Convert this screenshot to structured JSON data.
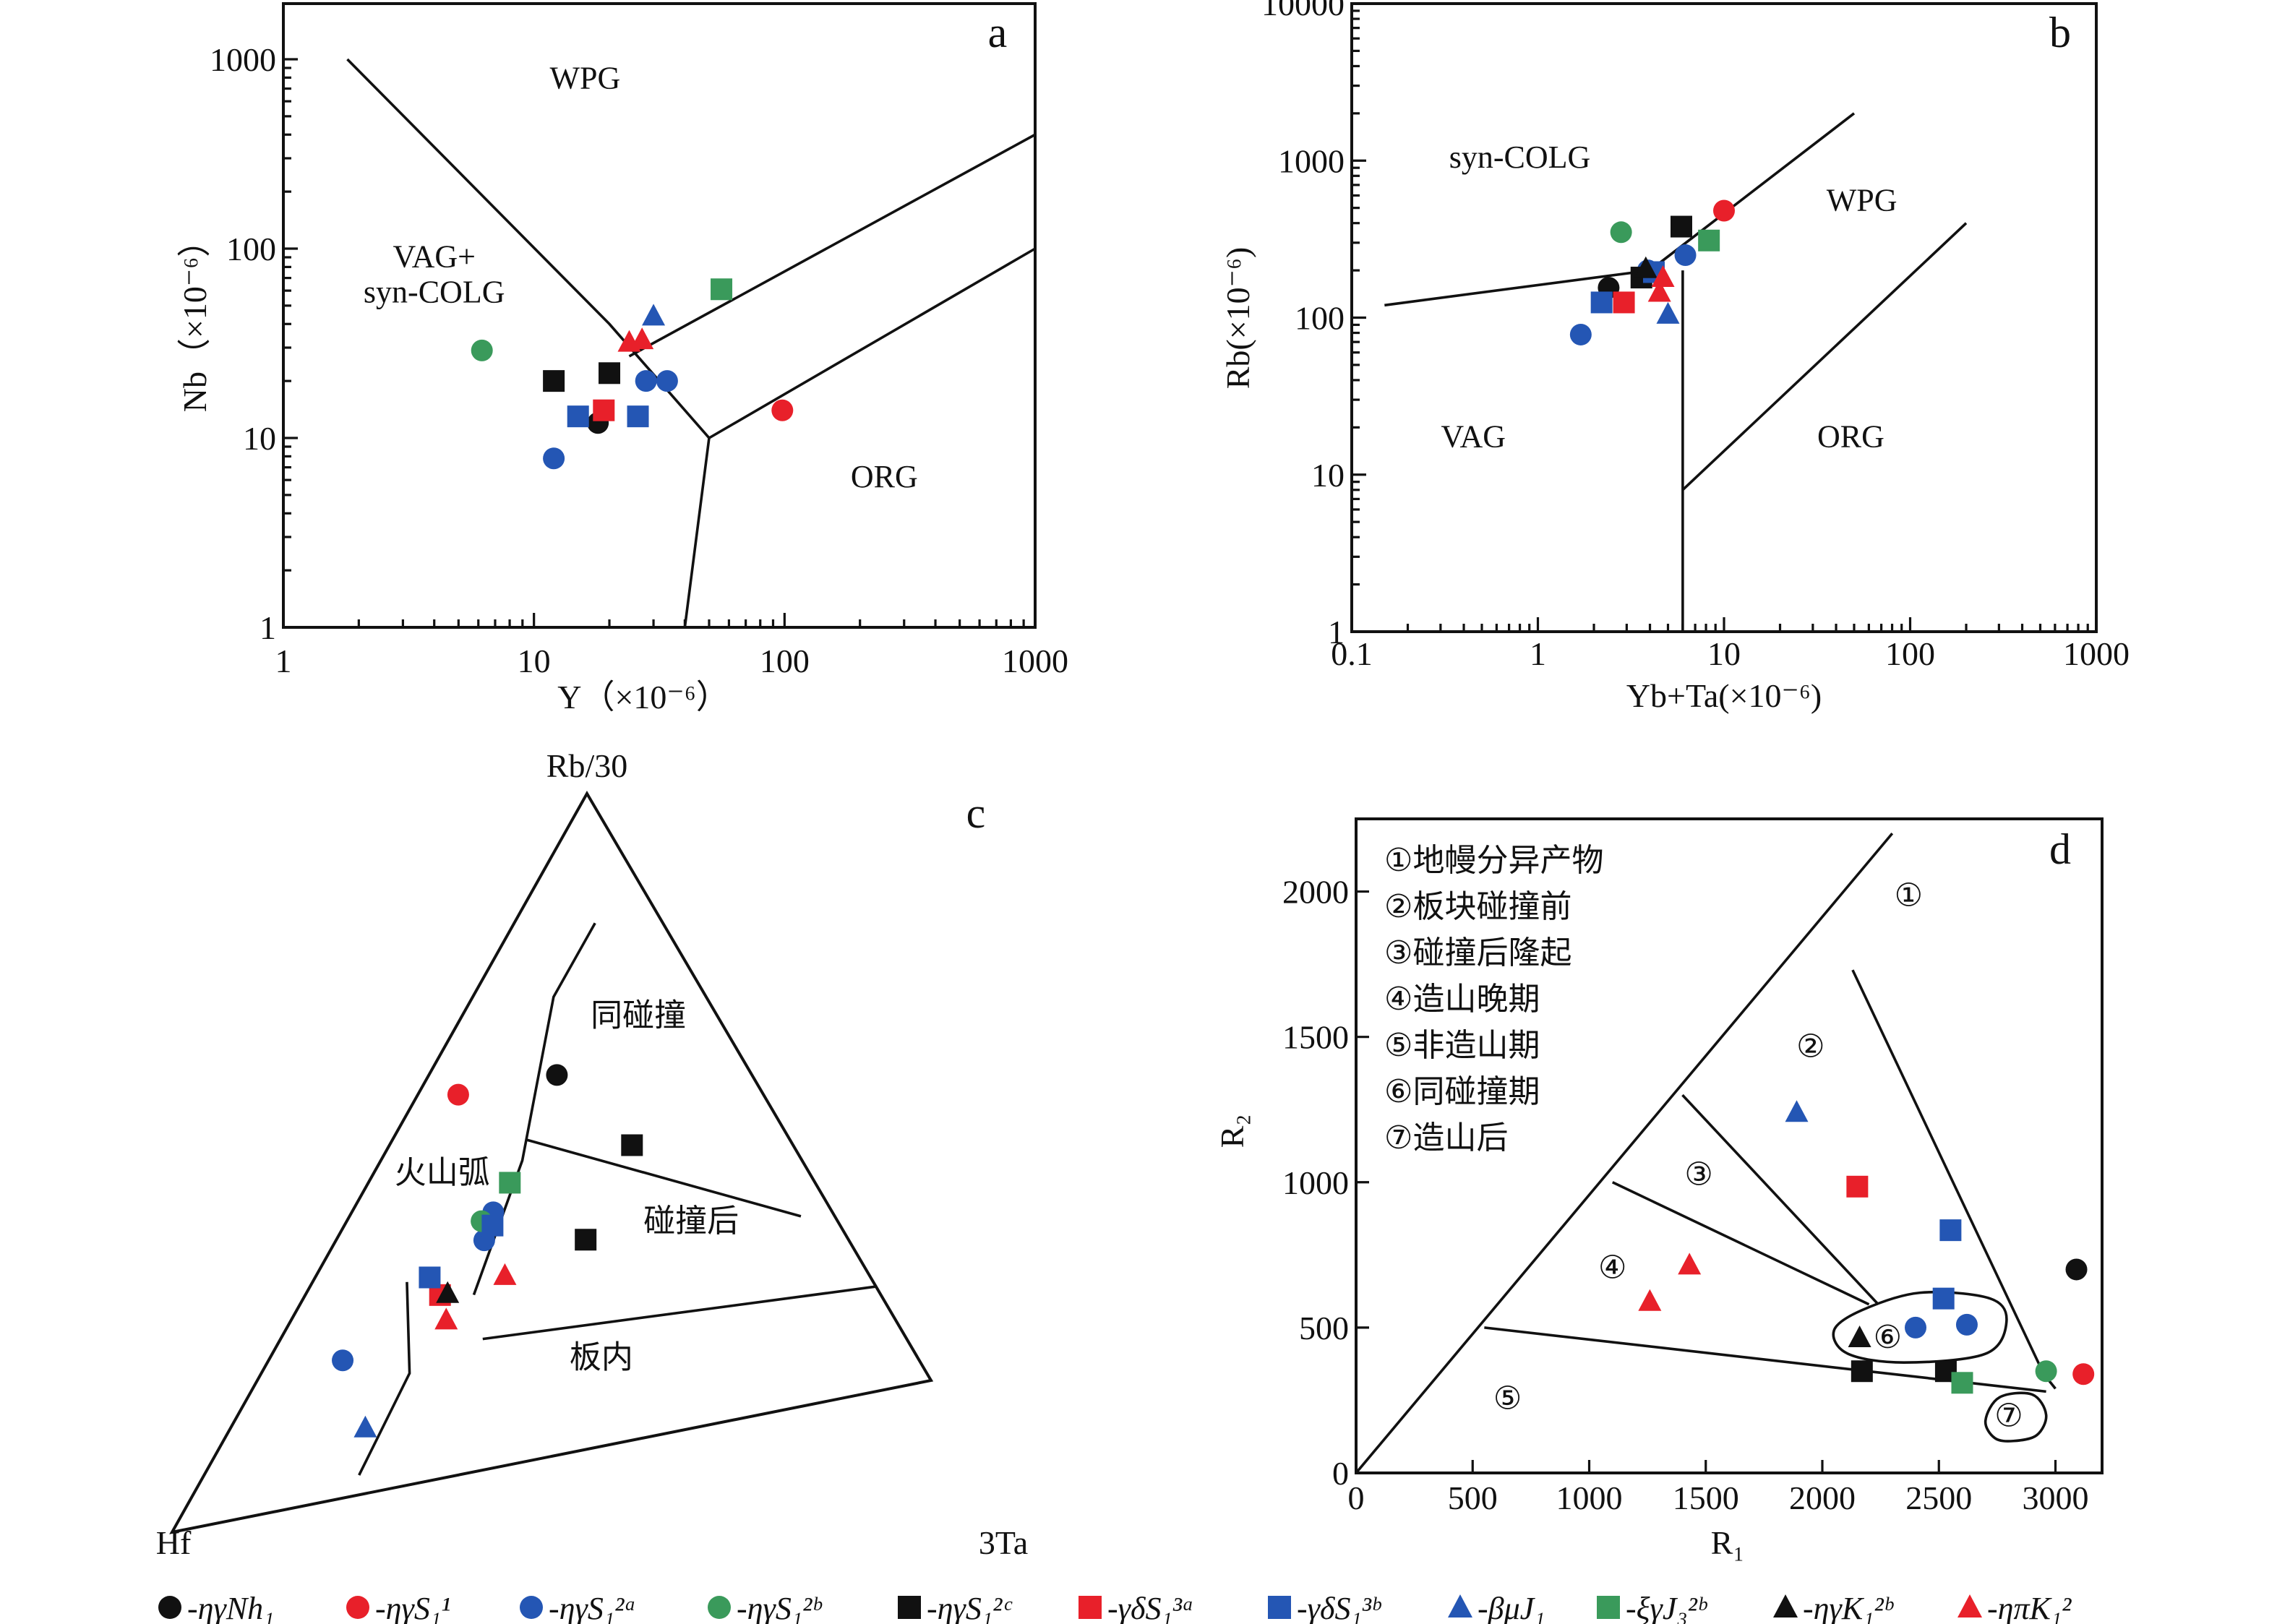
{
  "colors": {
    "black": "#111111",
    "red": "#e8202a",
    "blue": "#2456b4",
    "green": "#3a9a5b"
  },
  "chart_data": [
    {
      "panel": "a",
      "type": "scatter",
      "xlabel": "Y（×10⁻⁶）",
      "ylabel": "Nb（×10⁻⁶）",
      "xscale": "log",
      "yscale": "log",
      "xlim": [
        1,
        1000
      ],
      "ylim": [
        1,
        1000
      ],
      "xticks": [
        "1",
        "10",
        "100",
        "1000"
      ],
      "yticks": [
        "1",
        "10",
        "100",
        "1000"
      ],
      "regions": [
        {
          "label": "WPG",
          "x": 16,
          "y": 700
        },
        {
          "label": "VAG+",
          "x": 4,
          "y": 80
        },
        {
          "label": "syn-COLG",
          "x": 4,
          "y": 52
        },
        {
          "label": "ORG",
          "x": 250,
          "y": 5.5
        }
      ],
      "boundaries": [
        [
          [
            1.8,
            1000
          ],
          [
            20,
            40
          ],
          [
            50,
            10
          ],
          [
            40,
            1
          ]
        ],
        [
          [
            50,
            10
          ],
          [
            1000,
            100
          ]
        ],
        [
          [
            24,
            27
          ],
          [
            1000,
            400
          ]
        ]
      ],
      "points": [
        {
          "series": "ηγNh1",
          "marker": "circle",
          "color": "black",
          "x": 18,
          "y": 12
        },
        {
          "series": "ηγS1-1",
          "marker": "circle",
          "color": "red",
          "x": 98,
          "y": 14
        },
        {
          "series": "ηγS1-2a",
          "marker": "circle",
          "color": "blue",
          "x": 12,
          "y": 7.8
        },
        {
          "series": "ηγS1-2a",
          "marker": "circle",
          "color": "blue",
          "x": 28,
          "y": 20
        },
        {
          "series": "ηγS1-2a",
          "marker": "circle",
          "color": "blue",
          "x": 34,
          "y": 20
        },
        {
          "series": "ηγS1-2b",
          "marker": "circle",
          "color": "green",
          "x": 6.2,
          "y": 29
        },
        {
          "series": "ηγS1-2c",
          "marker": "square",
          "color": "black",
          "x": 12,
          "y": 20
        },
        {
          "series": "ηγS1-2c",
          "marker": "square",
          "color": "black",
          "x": 20,
          "y": 22
        },
        {
          "series": "γδS1-3a",
          "marker": "square",
          "color": "red",
          "x": 19,
          "y": 14
        },
        {
          "series": "γδS1-3b",
          "marker": "square",
          "color": "blue",
          "x": 15,
          "y": 13
        },
        {
          "series": "γδS1-3b",
          "marker": "square",
          "color": "blue",
          "x": 26,
          "y": 13
        },
        {
          "series": "βμJ1",
          "marker": "triangle",
          "color": "blue",
          "x": 30,
          "y": 44
        },
        {
          "series": "ξγJ3-2b",
          "marker": "square",
          "color": "green",
          "x": 56,
          "y": 61
        },
        {
          "series": "ηπK1-2",
          "marker": "triangle",
          "color": "red",
          "x": 24,
          "y": 32
        },
        {
          "series": "ηπK1-2",
          "marker": "triangle",
          "color": "red",
          "x": 27,
          "y": 33
        }
      ]
    },
    {
      "panel": "b",
      "type": "scatter",
      "xlabel": "Yb+Ta(×10⁻⁶)",
      "ylabel": "Rb(×10⁻⁶)",
      "xscale": "log",
      "yscale": "log",
      "xlim": [
        0.1,
        1000
      ],
      "ylim": [
        1,
        10000
      ],
      "xticks": [
        "0.1",
        "1",
        "10",
        "100",
        "1000"
      ],
      "yticks": [
        "1",
        "10",
        "100",
        "1000",
        "10000"
      ],
      "regions": [
        {
          "label": "syn-COLG",
          "x": 0.8,
          "y": 900
        },
        {
          "label": "WPG",
          "x": 55,
          "y": 480
        },
        {
          "label": "VAG",
          "x": 0.45,
          "y": 15
        },
        {
          "label": "ORG",
          "x": 48,
          "y": 15
        }
      ],
      "boundaries": [
        [
          [
            0.15,
            120
          ],
          [
            4,
            200
          ],
          [
            50,
            2000
          ]
        ],
        [
          [
            6,
            1
          ],
          [
            6,
            200
          ]
        ],
        [
          [
            6,
            8
          ],
          [
            200,
            400
          ]
        ]
      ],
      "points": [
        {
          "series": "ηγNh1",
          "marker": "circle",
          "color": "black",
          "x": 2.4,
          "y": 155
        },
        {
          "series": "ηγS1-1",
          "marker": "circle",
          "color": "red",
          "x": 10,
          "y": 480
        },
        {
          "series": "ηγS1-2a",
          "marker": "circle",
          "color": "blue",
          "x": 1.7,
          "y": 78
        },
        {
          "series": "ηγS1-2a",
          "marker": "circle",
          "color": "blue",
          "x": 3.9,
          "y": 200
        },
        {
          "series": "ηγS1-2a",
          "marker": "circle",
          "color": "blue",
          "x": 6.2,
          "y": 250
        },
        {
          "series": "ηγS1-2b",
          "marker": "circle",
          "color": "green",
          "x": 2.8,
          "y": 350
        },
        {
          "series": "ηγS1-2c",
          "marker": "square",
          "color": "black",
          "x": 5.9,
          "y": 380
        },
        {
          "series": "ηγS1-2c",
          "marker": "square",
          "color": "black",
          "x": 3.6,
          "y": 180
        },
        {
          "series": "γδS1-3a",
          "marker": "square",
          "color": "red",
          "x": 2.9,
          "y": 125
        },
        {
          "series": "γδS1-3b",
          "marker": "square",
          "color": "blue",
          "x": 2.2,
          "y": 125
        },
        {
          "series": "γδS1-3b",
          "marker": "square",
          "color": "blue",
          "x": 4.2,
          "y": 195
        },
        {
          "series": "βμJ1",
          "marker": "triangle",
          "color": "blue",
          "x": 5,
          "y": 105
        },
        {
          "series": "ξγJ3-2b",
          "marker": "square",
          "color": "green",
          "x": 8.3,
          "y": 310
        },
        {
          "series": "ηγK1-2b",
          "marker": "triangle",
          "color": "black",
          "x": 3.8,
          "y": 205
        },
        {
          "series": "ηπK1-2",
          "marker": "triangle",
          "color": "red",
          "x": 4.7,
          "y": 180
        },
        {
          "series": "ηπK1-2",
          "marker": "triangle",
          "color": "red",
          "x": 4.5,
          "y": 145
        }
      ]
    },
    {
      "panel": "c",
      "type": "ternary",
      "apex_labels": {
        "top": "Rb/30",
        "left": "Hf",
        "right": "3Ta"
      },
      "regions": [
        {
          "label": "火山弧",
          "rb": 0.45,
          "hf": 0.44,
          "ta": 0.11
        },
        {
          "label": "同碰撞",
          "rb": 0.63,
          "hf": 0.1,
          "ta": 0.27
        },
        {
          "label": "碰撞后",
          "rb": 0.3,
          "hf": 0.18,
          "ta": 0.52
        },
        {
          "label": "板内",
          "rb": 0.12,
          "hf": 0.38,
          "ta": 0.5
        }
      ],
      "boundaries": [
        [
          [
            0.27,
            0.48,
            0.25
          ],
          [
            0.46,
            0.33,
            0.21
          ],
          [
            0.7,
            0.18,
            0.12
          ],
          [
            0.8,
            0.08,
            0.12
          ]
        ],
        [
          [
            0.49,
            0.31,
            0.2
          ],
          [
            0.29,
            0.04,
            0.67
          ]
        ],
        [
          [
            0.2,
            0.5,
            0.3
          ],
          [
            0.16,
            0.0,
            0.84
          ]
        ],
        [
          [
            0.03,
            0.74,
            0.23
          ],
          [
            0.17,
            0.61,
            0.22
          ],
          [
            0.31,
            0.55,
            0.14
          ]
        ]
      ],
      "points": [
        {
          "series": "ηγNh1",
          "marker": "circle",
          "color": "black",
          "rb": 0.58,
          "hf": 0.23,
          "ta": 0.19
        },
        {
          "series": "ηγS1-1",
          "marker": "circle",
          "color": "red",
          "rb": 0.58,
          "hf": 0.36,
          "ta": 0.06
        },
        {
          "series": "ηγS1-2a",
          "marker": "circle",
          "color": "blue",
          "rb": 0.21,
          "hf": 0.68,
          "ta": 0.11
        },
        {
          "series": "ηγS1-2a",
          "marker": "circle",
          "color": "blue",
          "rb": 0.39,
          "hf": 0.4,
          "ta": 0.21
        },
        {
          "series": "ηγS1-2a",
          "marker": "circle",
          "color": "blue",
          "rb": 0.35,
          "hf": 0.43,
          "ta": 0.22
        },
        {
          "series": "ηγS1-2b",
          "marker": "circle",
          "color": "green",
          "rb": 0.38,
          "hf": 0.42,
          "ta": 0.2
        },
        {
          "series": "ηγS1-2c",
          "marker": "square",
          "color": "black",
          "rb": 0.45,
          "hf": 0.19,
          "ta": 0.36
        },
        {
          "series": "ηγS1-2c",
          "marker": "square",
          "color": "black",
          "rb": 0.32,
          "hf": 0.31,
          "ta": 0.37
        },
        {
          "series": "γδS1-3a",
          "marker": "square",
          "color": "red",
          "rb": 0.28,
          "hf": 0.52,
          "ta": 0.2
        },
        {
          "series": "γδS1-3b",
          "marker": "square",
          "color": "blue",
          "rb": 0.31,
          "hf": 0.52,
          "ta": 0.17
        },
        {
          "series": "γδS1-3b",
          "marker": "square",
          "color": "blue",
          "rb": 0.37,
          "hf": 0.41,
          "ta": 0.22
        },
        {
          "series": "βμJ1",
          "marker": "triangle",
          "color": "blue",
          "rb": 0.1,
          "hf": 0.7,
          "ta": 0.2
        },
        {
          "series": "ξγJ3-2b",
          "marker": "square",
          "color": "green",
          "rb": 0.43,
          "hf": 0.36,
          "ta": 0.21
        },
        {
          "series": "ηγK1-2b",
          "marker": "triangle",
          "color": "black",
          "rb": 0.28,
          "hf": 0.51,
          "ta": 0.21
        },
        {
          "series": "ηπK1-2",
          "marker": "triangle",
          "color": "red",
          "rb": 0.24,
          "hf": 0.53,
          "ta": 0.23
        },
        {
          "series": "ηπK1-2",
          "marker": "triangle",
          "color": "red",
          "rb": 0.29,
          "hf": 0.43,
          "ta": 0.28
        }
      ]
    },
    {
      "panel": "d",
      "type": "scatter",
      "xlabel": "R₁",
      "ylabel": "R₂",
      "xlim": [
        0,
        3200
      ],
      "ylim": [
        0,
        2250
      ],
      "xticks": [
        "0",
        "500",
        "1000",
        "1500",
        "2000",
        "2500",
        "3000"
      ],
      "yticks": [
        "0",
        "500",
        "1000",
        "1500",
        "2000"
      ],
      "legend_items": [
        "①地幔分异产物",
        "②板块碰撞前",
        "③碰撞后隆起",
        "④造山晚期",
        "⑤非造山期",
        "⑥同碰撞期",
        "⑦造山后"
      ],
      "regions": [
        {
          "label": "①",
          "x": 2370,
          "y": 1990
        },
        {
          "label": "②",
          "x": 1950,
          "y": 1470
        },
        {
          "label": "③",
          "x": 1470,
          "y": 1030
        },
        {
          "label": "④",
          "x": 1100,
          "y": 710
        },
        {
          "label": "⑤",
          "x": 650,
          "y": 260
        },
        {
          "label": "⑥",
          "x": 2280,
          "y": 470
        },
        {
          "label": "⑦",
          "x": 2800,
          "y": 200
        }
      ],
      "boundaries": [
        [
          [
            0,
            0
          ],
          [
            2300,
            2200
          ]
        ],
        [
          [
            2130,
            1730
          ],
          [
            2950,
            340
          ]
        ],
        [
          [
            550,
            500
          ],
          [
            2960,
            280
          ]
        ],
        [
          [
            1400,
            1300
          ],
          [
            2240,
            580
          ]
        ],
        [
          [
            1100,
            1000
          ],
          [
            2200,
            580
          ]
        ],
        [
          [
            2950,
            340
          ],
          [
            3000,
            290
          ]
        ]
      ],
      "closed_curves": [
        [
          [
            2170,
            560
          ],
          [
            2420,
            620
          ],
          [
            2720,
            600
          ],
          [
            2790,
            520
          ],
          [
            2700,
            410
          ],
          [
            2350,
            380
          ],
          [
            2110,
            410
          ],
          [
            2050,
            490
          ]
        ],
        [
          [
            2740,
            120
          ],
          [
            2700,
            180
          ],
          [
            2760,
            260
          ],
          [
            2900,
            270
          ],
          [
            2960,
            200
          ],
          [
            2920,
            130
          ],
          [
            2820,
            110
          ]
        ]
      ],
      "points": [
        {
          "series": "ηγNh1",
          "marker": "circle",
          "color": "black",
          "x": 3090,
          "y": 700
        },
        {
          "series": "ηγS1-1",
          "marker": "circle",
          "color": "red",
          "x": 3120,
          "y": 340
        },
        {
          "series": "ηγS1-2a",
          "marker": "circle",
          "color": "blue",
          "x": 2400,
          "y": 500
        },
        {
          "series": "ηγS1-2a",
          "marker": "circle",
          "color": "blue",
          "x": 2620,
          "y": 510
        },
        {
          "series": "ηγS1-2b",
          "marker": "circle",
          "color": "green",
          "x": 2960,
          "y": 350
        },
        {
          "series": "ηγS1-2c",
          "marker": "square",
          "color": "black",
          "x": 2170,
          "y": 350
        },
        {
          "series": "ηγS1-2c",
          "marker": "square",
          "color": "black",
          "x": 2530,
          "y": 350
        },
        {
          "series": "γδS1-3a",
          "marker": "square",
          "color": "red",
          "x": 2150,
          "y": 985
        },
        {
          "series": "γδS1-3b",
          "marker": "square",
          "color": "blue",
          "x": 2550,
          "y": 835
        },
        {
          "series": "γδS1-3b",
          "marker": "square",
          "color": "blue",
          "x": 2520,
          "y": 600
        },
        {
          "series": "βμJ1",
          "marker": "triangle",
          "color": "blue",
          "x": 1890,
          "y": 1240
        },
        {
          "series": "ξγJ3-2b",
          "marker": "square",
          "color": "green",
          "x": 2600,
          "y": 310
        },
        {
          "series": "ηγK1-2b",
          "marker": "triangle",
          "color": "black",
          "x": 2160,
          "y": 465
        },
        {
          "series": "ηπK1-2",
          "marker": "triangle",
          "color": "red",
          "x": 1260,
          "y": 590
        },
        {
          "series": "ηπK1-2",
          "marker": "triangle",
          "color": "red",
          "x": 1430,
          "y": 715
        }
      ]
    }
  ],
  "legend": [
    {
      "marker": "circle",
      "color": "black",
      "label": "-ηγNh₁"
    },
    {
      "marker": "circle",
      "color": "red",
      "label": "-ηγS₁¹"
    },
    {
      "marker": "circle",
      "color": "blue",
      "label": "-ηγS₁²ᵃ"
    },
    {
      "marker": "circle",
      "color": "green",
      "label": "-ηγS₁²ᵇ"
    },
    {
      "marker": "square",
      "color": "black",
      "label": "-ηγS₁²ᶜ"
    },
    {
      "marker": "square",
      "color": "red",
      "label": "-γδS₁³ᵃ"
    },
    {
      "marker": "square",
      "color": "blue",
      "label": "-γδS₁³ᵇ"
    },
    {
      "marker": "triangle",
      "color": "blue",
      "label": "-βμJ₁"
    },
    {
      "marker": "square",
      "color": "green",
      "label": "-ξγJ₃²ᵇ"
    },
    {
      "marker": "triangle",
      "color": "black",
      "label": "-ηγK₁²ᵇ"
    },
    {
      "marker": "triangle",
      "color": "red",
      "label": "-ηπK₁²"
    }
  ]
}
